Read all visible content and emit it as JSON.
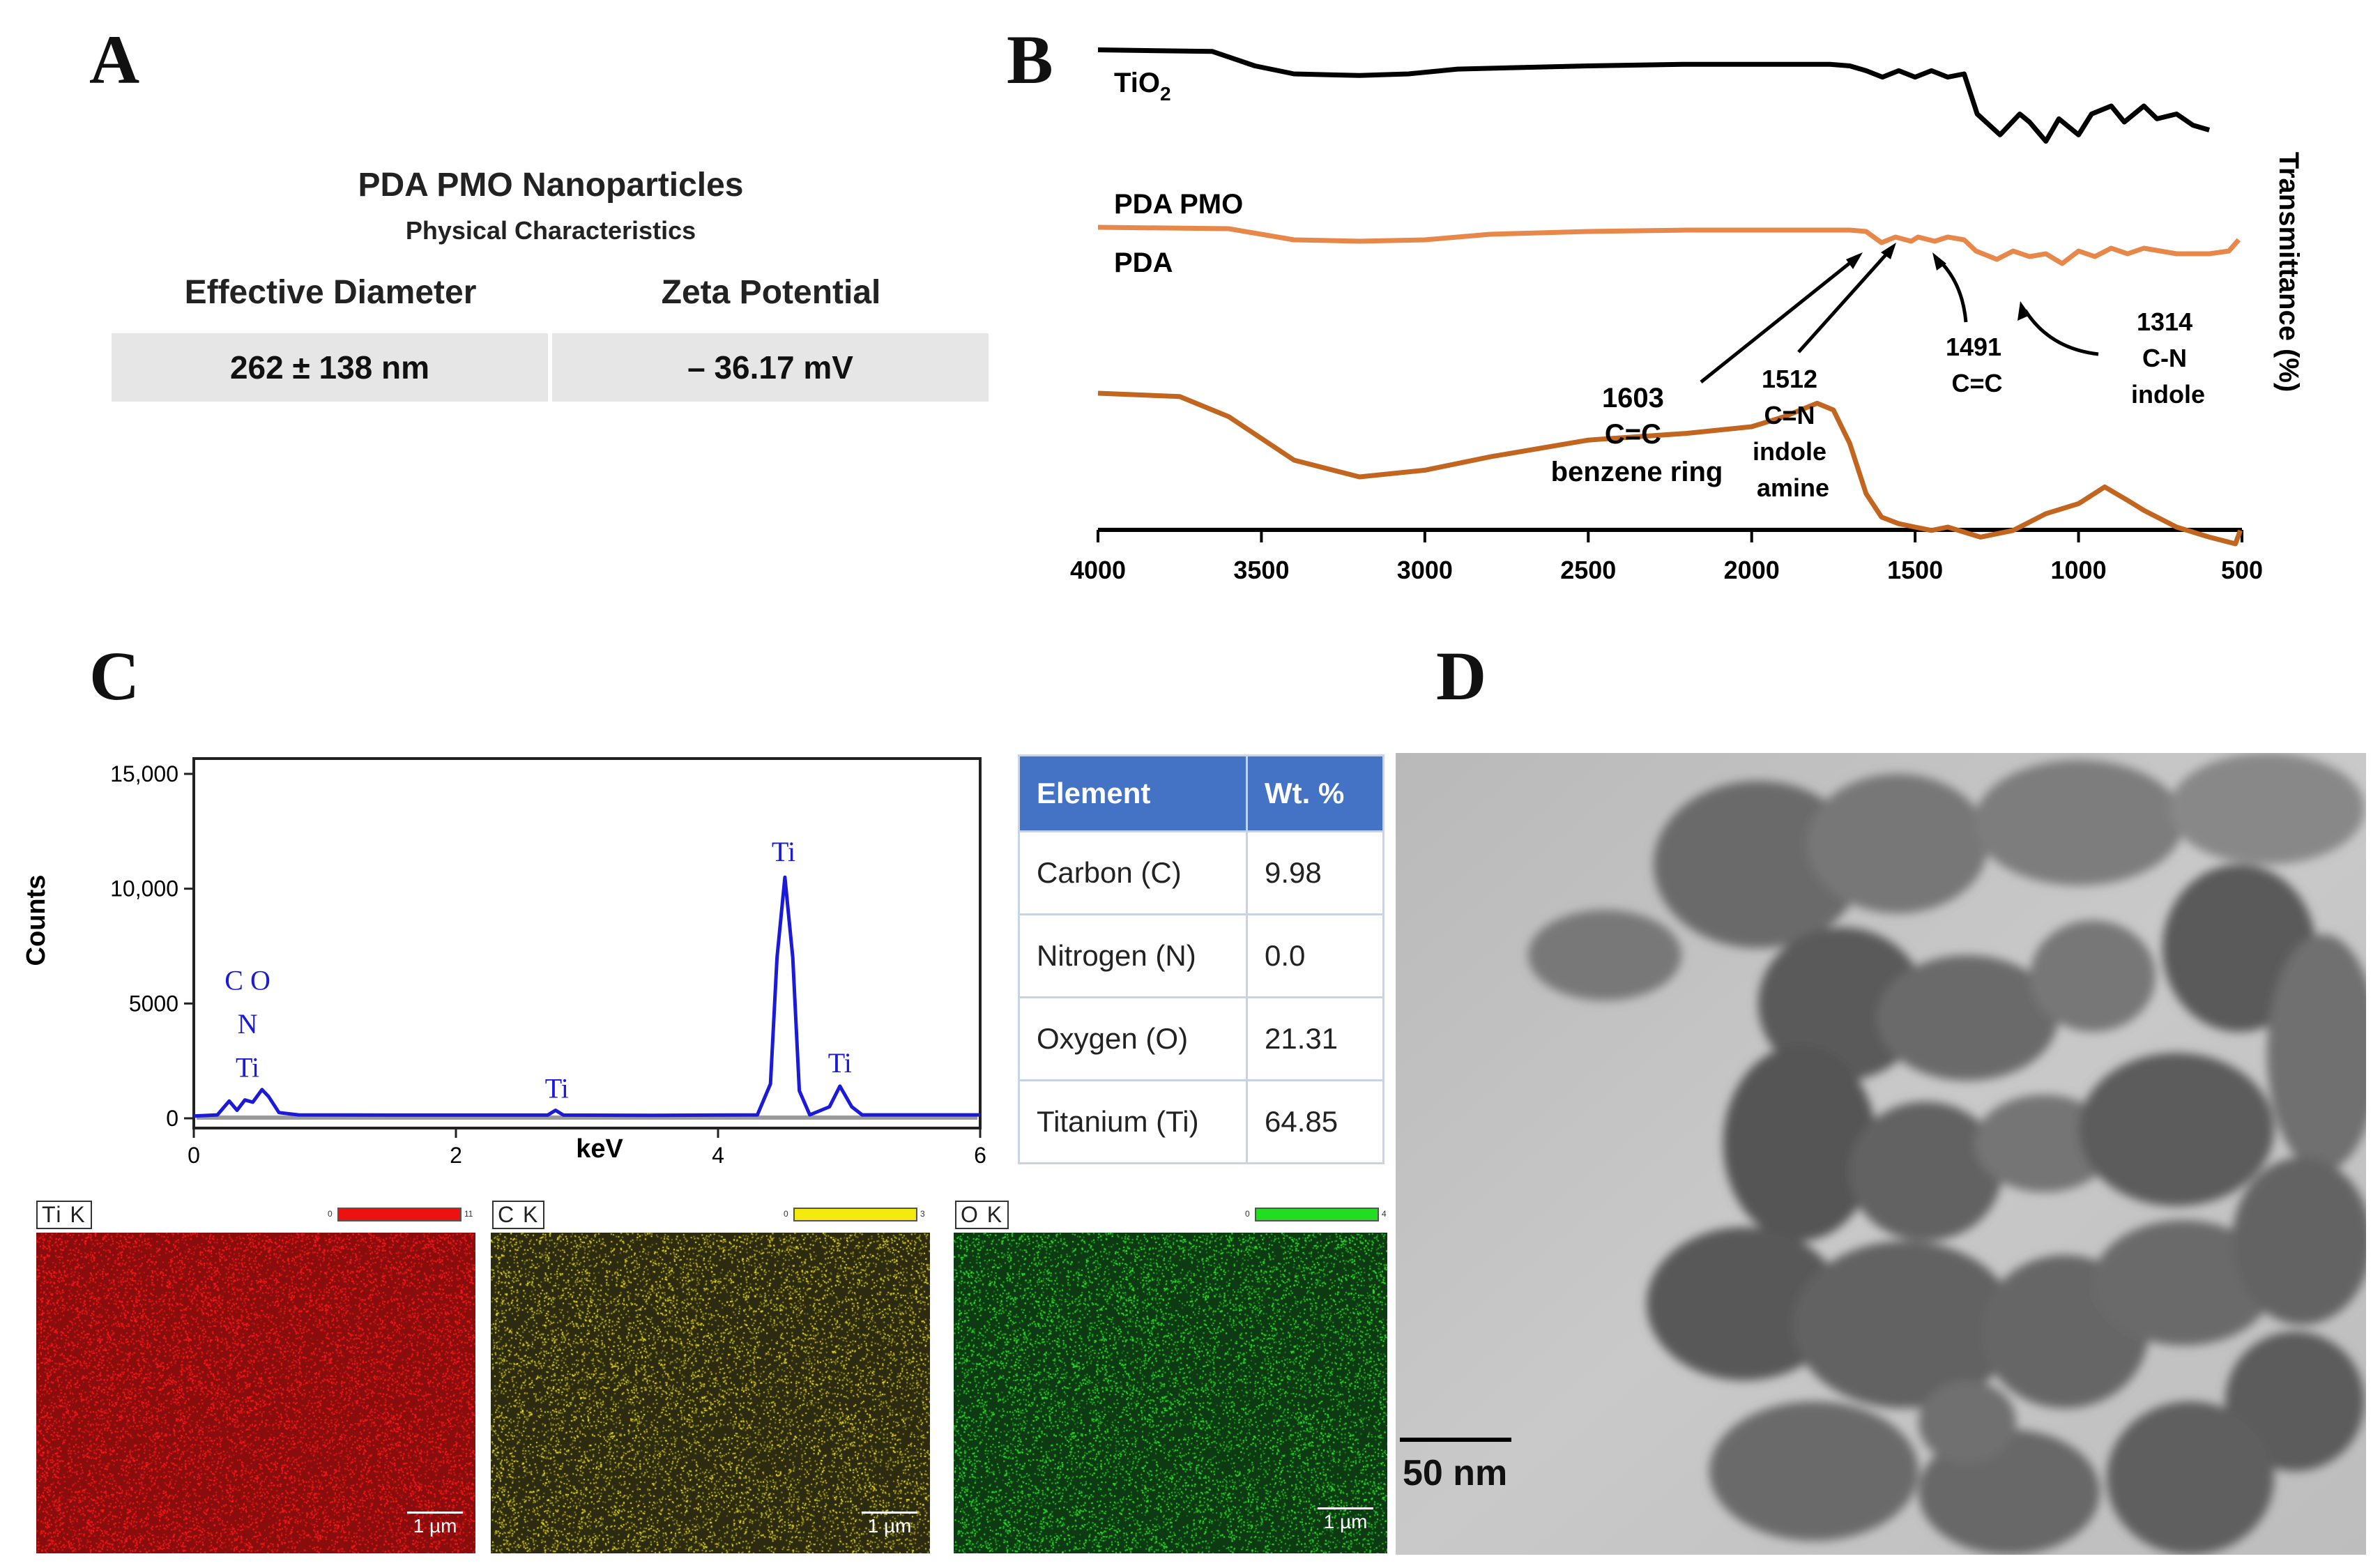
{
  "panel_letters": {
    "a": "A",
    "b": "B",
    "c": "C",
    "d": "D"
  },
  "panel_a": {
    "title": "PDA PMO Nanoparticles",
    "subtitle": "Physical Characteristics",
    "headers": [
      "Effective Diameter",
      "Zeta Potential"
    ],
    "values": [
      "262 ± 138 nm",
      "– 36.17 mV"
    ]
  },
  "ftir": {
    "curve_labels": {
      "tio2": "TiO",
      "tio2_sub": "2",
      "pda_pmo": "PDA PMO",
      "pda": "PDA"
    },
    "ylabel": "Transmittance (%)",
    "annotations": [
      {
        "id": "a1603",
        "lines": [
          "1603",
          "C=C",
          "benzene ring"
        ]
      },
      {
        "id": "a1512",
        "lines": [
          "1512",
          "C=N",
          "indole",
          "amine"
        ]
      },
      {
        "id": "a1491",
        "lines": [
          "1491",
          "C=C"
        ]
      },
      {
        "id": "a1314",
        "lines": [
          "1314",
          "C-N",
          "indole"
        ]
      }
    ],
    "colors": {
      "tio2": "#000000",
      "pda_pmo": "#e8874a",
      "pda": "#c2651f"
    }
  },
  "chart_data": [
    {
      "type": "line",
      "xlabel": "",
      "ylabel": "Transmittance (%)",
      "x_ticks": [
        "4000",
        "3500",
        "3000",
        "2500",
        "2000",
        "1500",
        "1000",
        "500"
      ],
      "xlim": [
        4000,
        500
      ],
      "ylim": [
        0,
        100
      ],
      "series": [
        {
          "name": "TiO2",
          "x": [
            4000,
            3650,
            3520,
            3400,
            3200,
            3050,
            2900,
            2500,
            2200,
            1900,
            1760,
            1700,
            1650,
            1600,
            1550,
            1500,
            1450,
            1400,
            1350,
            1310,
            1240,
            1180,
            1150,
            1100,
            1060,
            1000,
            960,
            900,
            860,
            800,
            760,
            700,
            650,
            600
          ],
          "y": [
            95,
            94,
            85,
            80,
            79,
            80,
            83,
            85,
            86,
            86,
            86,
            85,
            82,
            78,
            82,
            78,
            82,
            78,
            80,
            55,
            42,
            55,
            50,
            38,
            52,
            42,
            55,
            60,
            50,
            60,
            52,
            55,
            48,
            45
          ]
        },
        {
          "name": "PDA PMO",
          "x": [
            4000,
            3600,
            3400,
            3200,
            3000,
            2800,
            2500,
            2200,
            2000,
            1800,
            1700,
            1650,
            1603,
            1560,
            1512,
            1491,
            1440,
            1400,
            1350,
            1314,
            1250,
            1200,
            1150,
            1100,
            1050,
            1000,
            950,
            900,
            850,
            800,
            700,
            600,
            540,
            510
          ],
          "y": [
            57,
            56,
            48,
            47,
            48,
            52,
            54,
            55,
            55,
            55,
            55,
            54,
            46,
            50,
            47,
            50,
            47,
            50,
            48,
            40,
            34,
            40,
            36,
            38,
            31,
            40,
            36,
            42,
            38,
            42,
            38,
            38,
            40,
            48
          ]
        },
        {
          "name": "PDA",
          "x": [
            4000,
            3750,
            3600,
            3400,
            3200,
            3000,
            2800,
            2500,
            2200,
            2000,
            1900,
            1800,
            1750,
            1700,
            1650,
            1603,
            1550,
            1500,
            1450,
            1400,
            1300,
            1200,
            1100,
            1000,
            920,
            850,
            800,
            700,
            600,
            520,
            505
          ],
          "y": [
            45,
            44,
            38,
            25,
            20,
            22,
            26,
            31,
            33,
            35,
            38,
            42,
            40,
            30,
            15,
            8,
            6,
            5,
            4,
            5,
            2,
            4,
            9,
            12,
            17,
            13,
            10,
            5,
            2,
            0,
            4
          ]
        }
      ]
    },
    {
      "type": "line",
      "xlabel": "keV",
      "ylabel": "Counts",
      "x_ticks": [
        "0",
        "2",
        "4",
        "6"
      ],
      "y_ticks": [
        "0",
        "5000",
        "10,000",
        "15,000"
      ],
      "xlim": [
        0,
        6
      ],
      "ylim": [
        0,
        15000
      ],
      "peak_labels": [
        {
          "text": "C O",
          "x": 0.41,
          "y": 5600
        },
        {
          "text": "N",
          "x": 0.41,
          "y": 3700
        },
        {
          "text": "Ti",
          "x": 0.41,
          "y": 1800
        },
        {
          "text": "Ti",
          "x": 2.77,
          "y": 900
        },
        {
          "text": "Ti",
          "x": 4.5,
          "y": 11200
        },
        {
          "text": "Ti",
          "x": 4.93,
          "y": 2000
        }
      ],
      "series": [
        {
          "name": "",
          "x": [
            0,
            0.18,
            0.27,
            0.33,
            0.39,
            0.45,
            0.52,
            0.57,
            0.65,
            0.8,
            1.5,
            2.7,
            2.76,
            2.82,
            3.5,
            4.3,
            4.4,
            4.45,
            4.51,
            4.57,
            4.62,
            4.7,
            4.85,
            4.93,
            5.02,
            5.1,
            6
          ],
          "y": [
            100,
            150,
            750,
            350,
            800,
            700,
            1250,
            950,
            250,
            150,
            140,
            140,
            350,
            140,
            130,
            150,
            1500,
            7000,
            10500,
            7000,
            1200,
            150,
            500,
            1400,
            500,
            150,
            150
          ]
        }
      ]
    }
  ],
  "eds_table": {
    "headers": [
      "Element",
      "Wt. %"
    ],
    "rows": [
      [
        "Carbon (C)",
        "9.98"
      ],
      [
        "Nitrogen (N)",
        "0.0"
      ],
      [
        "Oxygen (O)",
        "21.31"
      ],
      [
        "Titanium (Ti)",
        "64.85"
      ]
    ]
  },
  "maps": [
    {
      "label": "Ti K",
      "color": "#ff1a1a",
      "bg": "#8a0d0d",
      "range": [
        "0",
        "11"
      ],
      "scale": "1 µm"
    },
    {
      "label": "C K",
      "color": "#ffee22",
      "bg": "#2c2b12",
      "range": [
        "0",
        "3"
      ],
      "scale": "1 µm"
    },
    {
      "label": "O K",
      "color": "#2ee82e",
      "bg": "#0d3a12",
      "range": [
        "0",
        "4"
      ],
      "scale": "1 µm"
    }
  ],
  "tem": {
    "scale": "50 nm"
  }
}
